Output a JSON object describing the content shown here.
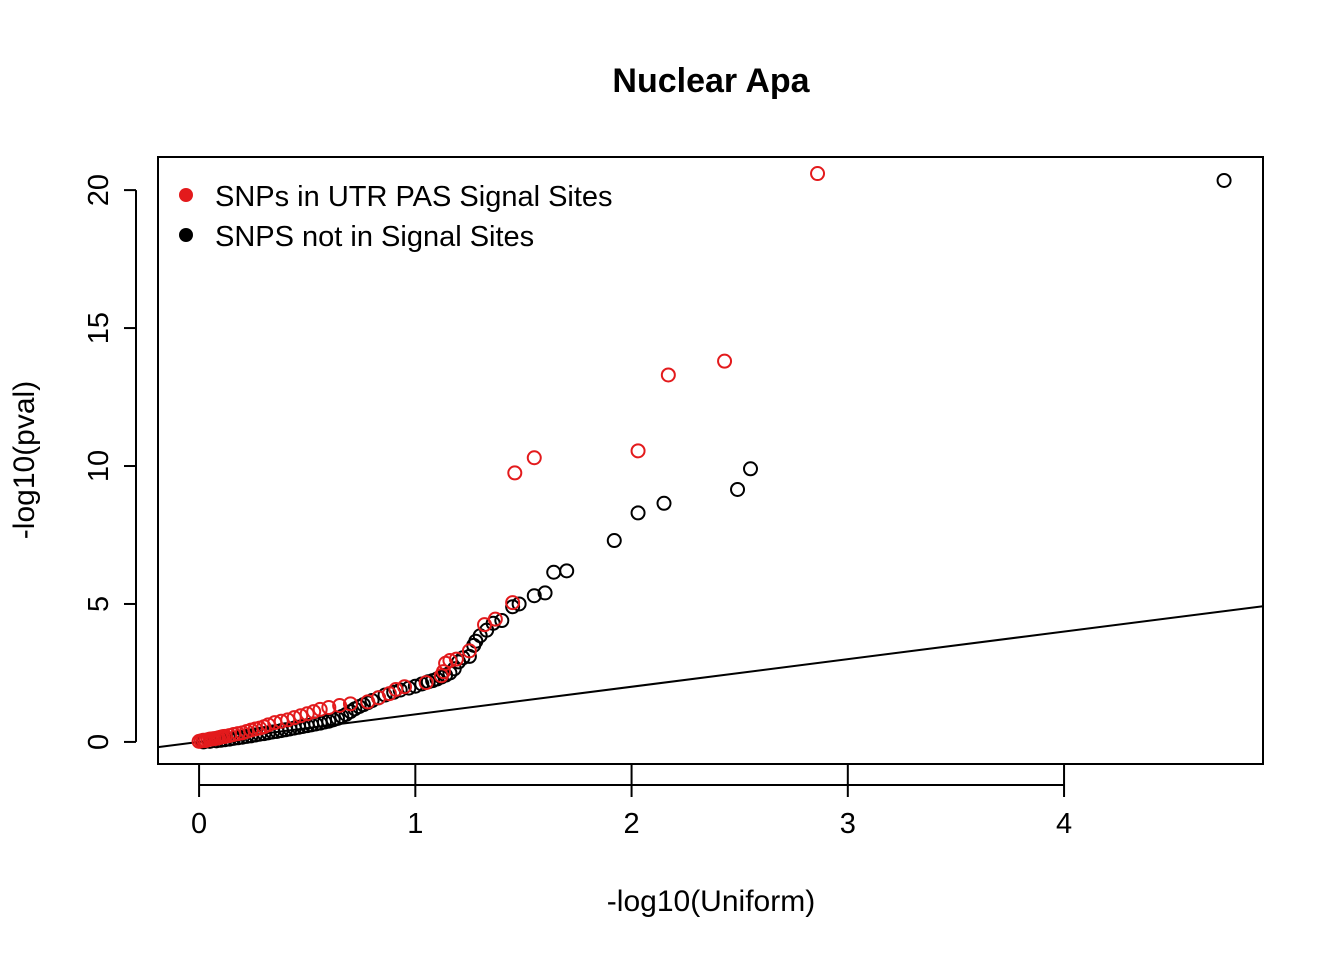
{
  "chart_data": {
    "type": "scatter",
    "title": "Nuclear Apa",
    "xlabel": "-log10(Uniform)",
    "ylabel": "-log10(pval)",
    "xlim": [
      -0.19,
      4.92
    ],
    "ylim": [
      -0.8,
      21.2
    ],
    "xticks": [
      0,
      1,
      2,
      3,
      4
    ],
    "yticks": [
      0,
      5,
      10,
      15,
      20
    ],
    "xtick_labels": [
      "0",
      "1",
      "2",
      "3",
      "4"
    ],
    "ytick_labels": [
      "0",
      "5",
      "10",
      "15",
      "20"
    ],
    "grid": false,
    "legend": {
      "position": "top-left",
      "entries": [
        {
          "label": "SNPs in UTR PAS Signal Sites",
          "color": "#e31a1c"
        },
        {
          "label": "SNPS not in Signal Sites",
          "color": "#000000"
        }
      ]
    },
    "reference_line": {
      "slope": 1,
      "intercept": 0
    },
    "series": [
      {
        "name": "SNPS not in Signal Sites",
        "color": "#000000",
        "points": [
          [
            0.02,
            0.0
          ],
          [
            0.05,
            0.02
          ],
          [
            0.08,
            0.04
          ],
          [
            0.1,
            0.06
          ],
          [
            0.12,
            0.08
          ],
          [
            0.14,
            0.1
          ],
          [
            0.16,
            0.13
          ],
          [
            0.18,
            0.15
          ],
          [
            0.2,
            0.17
          ],
          [
            0.22,
            0.2
          ],
          [
            0.24,
            0.22
          ],
          [
            0.26,
            0.25
          ],
          [
            0.28,
            0.28
          ],
          [
            0.3,
            0.3
          ],
          [
            0.32,
            0.33
          ],
          [
            0.34,
            0.36
          ],
          [
            0.36,
            0.38
          ],
          [
            0.38,
            0.41
          ],
          [
            0.4,
            0.44
          ],
          [
            0.42,
            0.47
          ],
          [
            0.44,
            0.5
          ],
          [
            0.46,
            0.53
          ],
          [
            0.48,
            0.56
          ],
          [
            0.5,
            0.59
          ],
          [
            0.52,
            0.62
          ],
          [
            0.54,
            0.65
          ],
          [
            0.56,
            0.68
          ],
          [
            0.58,
            0.72
          ],
          [
            0.6,
            0.75
          ],
          [
            0.62,
            0.8
          ],
          [
            0.64,
            0.85
          ],
          [
            0.66,
            0.92
          ],
          [
            0.68,
            1.0
          ],
          [
            0.7,
            1.1
          ],
          [
            0.72,
            1.2
          ],
          [
            0.74,
            1.28
          ],
          [
            0.76,
            1.35
          ],
          [
            0.78,
            1.42
          ],
          [
            0.8,
            1.5
          ],
          [
            0.83,
            1.6
          ],
          [
            0.86,
            1.7
          ],
          [
            0.9,
            1.8
          ],
          [
            0.93,
            1.88
          ],
          [
            0.97,
            1.95
          ],
          [
            1.0,
            2.02
          ],
          [
            1.03,
            2.1
          ],
          [
            1.06,
            2.18
          ],
          [
            1.08,
            2.22
          ],
          [
            1.1,
            2.28
          ],
          [
            1.12,
            2.35
          ],
          [
            1.14,
            2.42
          ],
          [
            1.16,
            2.5
          ],
          [
            1.18,
            2.65
          ],
          [
            1.2,
            2.9
          ],
          [
            1.22,
            3.05
          ],
          [
            1.25,
            3.1
          ],
          [
            1.27,
            3.5
          ],
          [
            1.28,
            3.65
          ],
          [
            1.3,
            3.85
          ],
          [
            1.33,
            4.05
          ],
          [
            1.36,
            4.3
          ],
          [
            1.4,
            4.4
          ],
          [
            1.45,
            4.9
          ],
          [
            1.48,
            5.0
          ],
          [
            1.55,
            5.3
          ],
          [
            1.6,
            5.4
          ],
          [
            1.64,
            6.15
          ],
          [
            1.7,
            6.2
          ],
          [
            1.92,
            7.3
          ],
          [
            2.03,
            8.3
          ],
          [
            2.15,
            8.65
          ],
          [
            2.49,
            9.15
          ],
          [
            2.55,
            9.9
          ],
          [
            4.74,
            20.35
          ]
        ]
      },
      {
        "name": "SNPs in UTR PAS Signal Sites",
        "color": "#e31a1c",
        "points": [
          [
            0.0,
            0.02
          ],
          [
            0.01,
            0.04
          ],
          [
            0.02,
            0.06
          ],
          [
            0.03,
            0.05
          ],
          [
            0.04,
            0.08
          ],
          [
            0.05,
            0.1
          ],
          [
            0.06,
            0.11
          ],
          [
            0.07,
            0.12
          ],
          [
            0.08,
            0.13
          ],
          [
            0.09,
            0.15
          ],
          [
            0.1,
            0.17
          ],
          [
            0.11,
            0.19
          ],
          [
            0.12,
            0.2
          ],
          [
            0.14,
            0.23
          ],
          [
            0.16,
            0.27
          ],
          [
            0.18,
            0.3
          ],
          [
            0.2,
            0.33
          ],
          [
            0.22,
            0.38
          ],
          [
            0.24,
            0.43
          ],
          [
            0.26,
            0.47
          ],
          [
            0.28,
            0.5
          ],
          [
            0.3,
            0.55
          ],
          [
            0.32,
            0.62
          ],
          [
            0.35,
            0.7
          ],
          [
            0.38,
            0.75
          ],
          [
            0.41,
            0.8
          ],
          [
            0.44,
            0.88
          ],
          [
            0.47,
            0.95
          ],
          [
            0.5,
            1.02
          ],
          [
            0.53,
            1.1
          ],
          [
            0.56,
            1.18
          ],
          [
            0.6,
            1.25
          ],
          [
            0.65,
            1.32
          ],
          [
            0.7,
            1.38
          ],
          [
            0.78,
            1.45
          ],
          [
            0.83,
            1.6
          ],
          [
            0.88,
            1.75
          ],
          [
            0.91,
            1.9
          ],
          [
            0.95,
            2.0
          ],
          [
            1.05,
            2.15
          ],
          [
            1.12,
            2.4
          ],
          [
            1.13,
            2.55
          ],
          [
            1.14,
            2.85
          ],
          [
            1.16,
            2.95
          ],
          [
            1.19,
            3.0
          ],
          [
            1.25,
            3.3
          ],
          [
            1.32,
            4.25
          ],
          [
            1.37,
            4.45
          ],
          [
            1.45,
            5.05
          ],
          [
            1.46,
            9.75
          ],
          [
            1.55,
            10.3
          ],
          [
            2.03,
            10.55
          ],
          [
            2.17,
            13.3
          ],
          [
            2.43,
            13.8
          ],
          [
            2.86,
            20.6
          ]
        ]
      }
    ]
  }
}
